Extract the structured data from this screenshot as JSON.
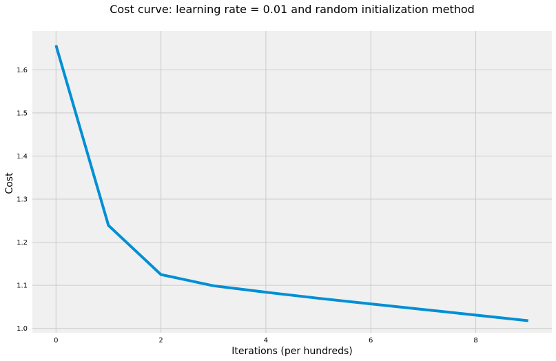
{
  "chart_data": {
    "type": "line",
    "title": "Cost curve: learning rate = 0.01 and random initialization method",
    "xlabel": "Iterations (per hundreds)",
    "ylabel": "Cost",
    "x": [
      0,
      1,
      2,
      3,
      4,
      5,
      6,
      7,
      8,
      9
    ],
    "series": [
      {
        "values": [
          1.657,
          1.239,
          1.125,
          1.099,
          1.084,
          1.07,
          1.057,
          1.044,
          1.031,
          1.018
        ],
        "color": "#008fd5"
      }
    ],
    "xlim": [
      -0.45,
      9.45
    ],
    "ylim": [
      0.99,
      1.69
    ],
    "xticks": [
      0,
      2,
      4,
      6,
      8
    ],
    "yticks": [
      1.0,
      1.1,
      1.2,
      1.3,
      1.4,
      1.5,
      1.6
    ],
    "xtick_labels": [
      "0",
      "2",
      "4",
      "6",
      "8"
    ],
    "ytick_labels": [
      "1.0",
      "1.1",
      "1.2",
      "1.3",
      "1.4",
      "1.5",
      "1.6"
    ],
    "grid": true,
    "legend": "none",
    "colors": {
      "plot_background": "#f0f0f0",
      "grid": "#cbcbcb",
      "line": "#008fd5"
    }
  }
}
